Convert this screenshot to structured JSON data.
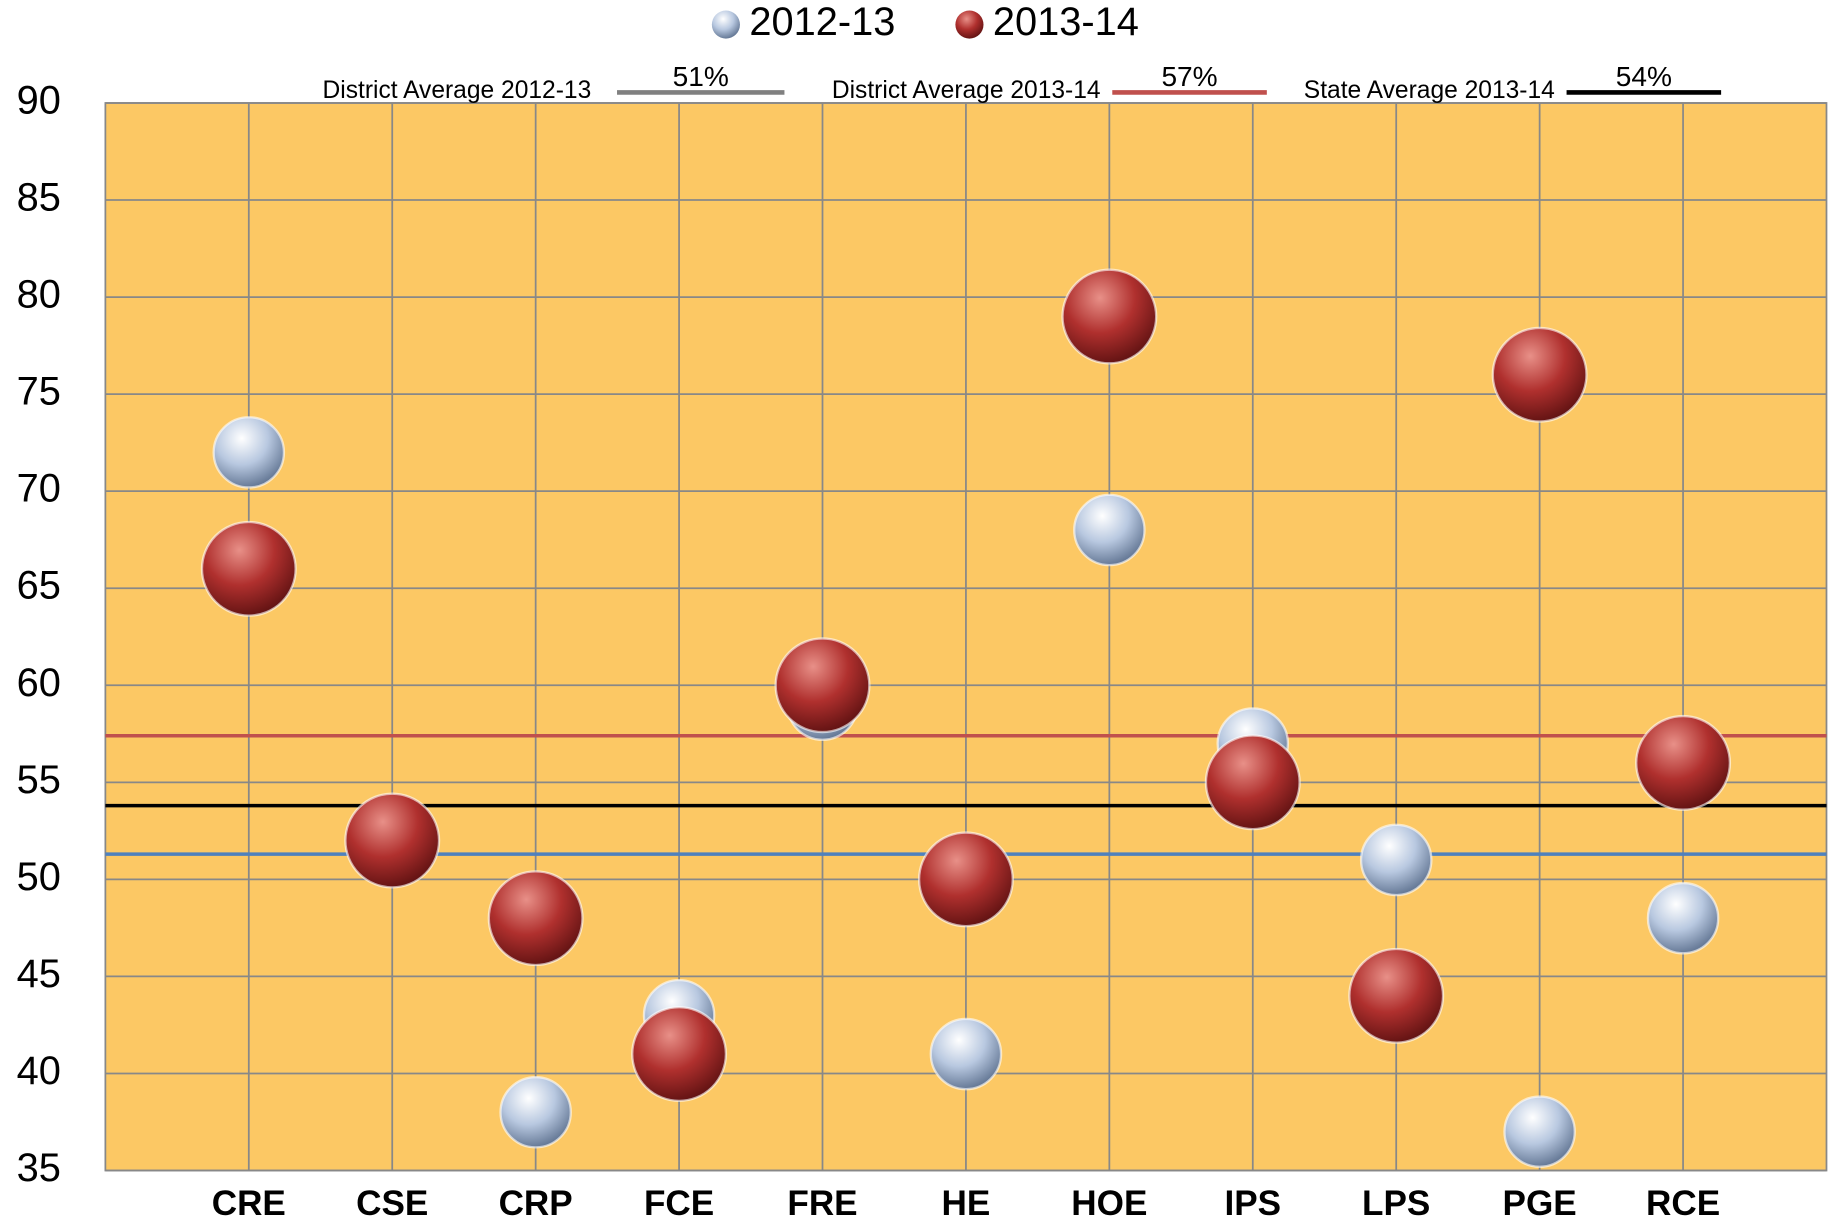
{
  "chart_data": {
    "type": "scatter",
    "categories": [
      "CRE",
      "CSE",
      "CRP",
      "FCE",
      "FRE",
      "HE",
      "HOE",
      "IPS",
      "LPS",
      "PGE",
      "RCE"
    ],
    "series": [
      {
        "name": "2012-13",
        "color": "#b8c8e0",
        "values": [
          72,
          52,
          38,
          43,
          59,
          41,
          68,
          57,
          51,
          37,
          48
        ]
      },
      {
        "name": "2013-14",
        "color": "#b0302e",
        "values": [
          66,
          52,
          48,
          41,
          60,
          50,
          79,
          55,
          44,
          76,
          56
        ]
      }
    ],
    "reference_lines": [
      {
        "name": "District Average 2012-13",
        "label": "51%",
        "value": 51.3,
        "color": "#4f81bd",
        "legend_color": "#808080"
      },
      {
        "name": "District Average 2013-14",
        "label": "57%",
        "value": 57.4,
        "color": "#c0504d",
        "legend_color": "#c0504d"
      },
      {
        "name": "State Average 2013-14",
        "label": "54%",
        "value": 53.8,
        "color": "#000000",
        "legend_color": "#000000"
      }
    ],
    "ylim": [
      35,
      90
    ],
    "yticks": [
      35,
      40,
      45,
      50,
      55,
      60,
      65,
      70,
      75,
      80,
      85,
      90
    ],
    "grid": true,
    "background": "#fcc864"
  }
}
